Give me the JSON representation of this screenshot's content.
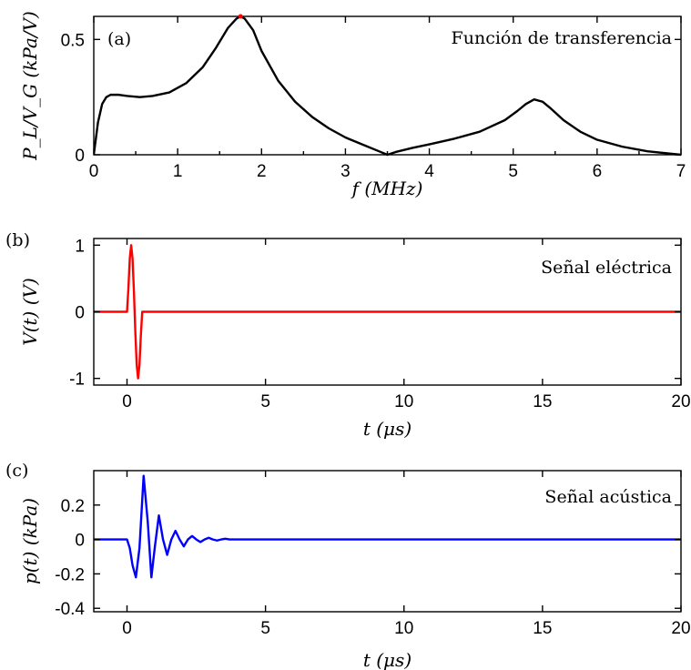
{
  "chart_data": [
    {
      "panel": "(a)",
      "type": "line",
      "title": "Función de transferencia",
      "xlabel": "f (MHz)",
      "ylabel": "P_L/V_G (kPa/V)",
      "xlim": [
        0,
        7
      ],
      "ylim": [
        0,
        0.6
      ],
      "xticks": [
        "0",
        "1",
        "2",
        "3",
        "4",
        "5",
        "6",
        "7"
      ],
      "yticks": [
        "0",
        "0.5"
      ],
      "color": "#000000",
      "series": [
        {
          "x": [
            0,
            0.05,
            0.1,
            0.15,
            0.2,
            0.3,
            0.4,
            0.55,
            0.7,
            0.9,
            1.1,
            1.3,
            1.45,
            1.6,
            1.7,
            1.75,
            1.8,
            1.9,
            2.0,
            2.2,
            2.4,
            2.6,
            2.8,
            3.0,
            3.2,
            3.4,
            3.5,
            3.6,
            3.8,
            4.0,
            4.3,
            4.6,
            4.9,
            5.05,
            5.15,
            5.25,
            5.35,
            5.45,
            5.6,
            5.8,
            6.0,
            6.3,
            6.6,
            7.0
          ],
          "y": [
            0.0,
            0.14,
            0.22,
            0.25,
            0.26,
            0.26,
            0.255,
            0.25,
            0.255,
            0.27,
            0.31,
            0.38,
            0.46,
            0.55,
            0.59,
            0.6,
            0.59,
            0.54,
            0.45,
            0.32,
            0.23,
            0.165,
            0.115,
            0.075,
            0.045,
            0.015,
            0.0,
            0.012,
            0.03,
            0.045,
            0.07,
            0.1,
            0.15,
            0.19,
            0.22,
            0.24,
            0.23,
            0.2,
            0.15,
            0.1,
            0.065,
            0.035,
            0.015,
            0.0
          ]
        }
      ]
    },
    {
      "panel": "(b)",
      "type": "line",
      "title": "Señal eléctrica",
      "xlabel": "t (μs)",
      "ylabel": "V(t) (V)",
      "xlim": [
        -1.2,
        20
      ],
      "ylim": [
        -1.1,
        1.1
      ],
      "xticks": [
        "0",
        "5",
        "10",
        "15",
        "20"
      ],
      "yticks": [
        "1",
        "0",
        "-1"
      ],
      "color": "#ff0000",
      "series": [
        {
          "x": [
            -1.2,
            0.0,
            0.05,
            0.1,
            0.15,
            0.2,
            0.25,
            0.3,
            0.35,
            0.4,
            0.45,
            0.5,
            0.55,
            0.6,
            20
          ],
          "y": [
            0,
            0,
            0.35,
            0.8,
            1.0,
            0.8,
            0.3,
            -0.3,
            -0.8,
            -1.0,
            -0.8,
            -0.35,
            0,
            0,
            0
          ]
        }
      ]
    },
    {
      "panel": "(c)",
      "type": "line",
      "title": "Señal acústica",
      "xlabel": "t (μs)",
      "ylabel": "p(t) (kPa)",
      "xlim": [
        -1.2,
        20
      ],
      "ylim": [
        -0.42,
        0.4
      ],
      "xticks": [
        "0",
        "5",
        "10",
        "15",
        "20"
      ],
      "yticks": [
        "0.2",
        "0",
        "-0.2",
        "-0.4"
      ],
      "color": "#0000ff",
      "series": [
        {
          "x": [
            -1.2,
            0.0,
            0.1,
            0.2,
            0.32,
            0.45,
            0.6,
            0.75,
            0.88,
            1.0,
            1.15,
            1.3,
            1.45,
            1.6,
            1.75,
            1.9,
            2.05,
            2.2,
            2.35,
            2.5,
            2.65,
            2.8,
            2.95,
            3.1,
            3.25,
            3.4,
            3.55,
            3.7,
            3.9,
            4.1,
            20
          ],
          "y": [
            0,
            0,
            -0.05,
            -0.15,
            -0.22,
            -0.05,
            0.37,
            0.1,
            -0.22,
            -0.05,
            0.14,
            0.0,
            -0.09,
            0.0,
            0.05,
            0.0,
            -0.04,
            0.0,
            0.02,
            0.0,
            -0.015,
            0.0,
            0.01,
            0.0,
            -0.006,
            0.0,
            0.004,
            0.0,
            0.0,
            0.0,
            0.0
          ]
        }
      ]
    }
  ]
}
